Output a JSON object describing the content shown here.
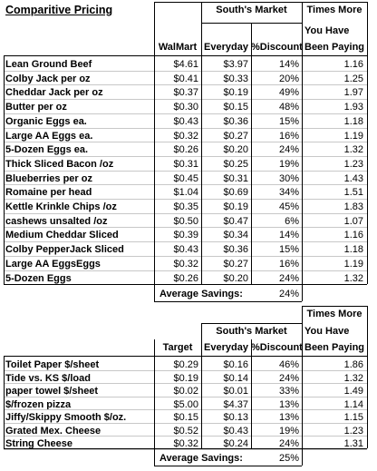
{
  "title": "Comparitive Pricing",
  "table1": {
    "group_header": "South's Market",
    "times_more": [
      "Times More",
      "You Have",
      "Been Paying"
    ],
    "headers": [
      "WalMart",
      "Everyday",
      "%Discount"
    ],
    "rows": [
      [
        "Lean Ground Beef",
        "$4.61",
        "$3.97",
        "14%",
        "1.16"
      ],
      [
        "Colby Jack per oz",
        "$0.41",
        "$0.33",
        "20%",
        "1.25"
      ],
      [
        "Cheddar Jack per oz",
        "$0.37",
        "$0.19",
        "49%",
        "1.97"
      ],
      [
        "Butter per oz",
        "$0.30",
        "$0.15",
        "48%",
        "1.93"
      ],
      [
        "Organic Eggs ea.",
        "$0.43",
        "$0.36",
        "15%",
        "1.18"
      ],
      [
        "Large AA Eggs ea.",
        "$0.32",
        "$0.27",
        "16%",
        "1.19"
      ],
      [
        "5-Dozen Eggs ea.",
        "$0.26",
        "$0.20",
        "24%",
        "1.32"
      ],
      [
        "Thick Sliced Bacon /oz",
        "$0.31",
        "$0.25",
        "19%",
        "1.23"
      ],
      [
        "Blueberries per oz",
        "$0.45",
        "$0.31",
        "30%",
        "1.43"
      ],
      [
        "Romaine per head",
        "$1.04",
        "$0.69",
        "34%",
        "1.51"
      ],
      [
        "Kettle Krinkle  Chips /oz",
        "$0.35",
        "$0.19",
        "45%",
        "1.83"
      ],
      [
        "cashews unsalted /oz",
        "$0.50",
        "$0.47",
        "6%",
        "1.07"
      ],
      [
        "Medium Cheddar Sliced",
        "$0.39",
        "$0.34",
        "14%",
        "1.16"
      ],
      [
        "Colby PepperJack Sliced",
        "$0.43",
        "$0.36",
        "15%",
        "1.18"
      ],
      [
        "Large AA EggsEggs",
        "$0.32",
        "$0.27",
        "16%",
        "1.19"
      ],
      [
        "5-Dozen Eggs",
        "$0.26",
        "$0.20",
        "24%",
        "1.32"
      ]
    ],
    "average_label": "Average Savings:",
    "average_value": "24%"
  },
  "table2": {
    "group_header": "South's Market",
    "times_more": [
      "Times More",
      "You Have",
      "Been Paying"
    ],
    "headers": [
      "Target",
      "Everyday",
      "%Discount"
    ],
    "rows": [
      [
        "Toilet Paper $/sheet",
        "$0.29",
        "$0.16",
        "46%",
        "1.86"
      ],
      [
        "Tide vs. KS $/load",
        "$0.19",
        "$0.14",
        "24%",
        "1.32"
      ],
      [
        "paper towel $/sheet",
        "$0.02",
        "$0.01",
        "33%",
        "1.49"
      ],
      [
        "$/frozen pizza",
        "$5.00",
        "$4.37",
        "13%",
        "1.14"
      ],
      [
        "Jiffy/Skippy Smooth $/oz.",
        "$0.15",
        "$0.13",
        "13%",
        "1.15"
      ],
      [
        "Grated Mex. Cheese",
        "$0.52",
        "$0.43",
        "19%",
        "1.23"
      ],
      [
        "String Cheese",
        "$0.32",
        "$0.24",
        "24%",
        "1.31"
      ]
    ],
    "average_label": "Average Savings:",
    "average_value": "25%"
  }
}
